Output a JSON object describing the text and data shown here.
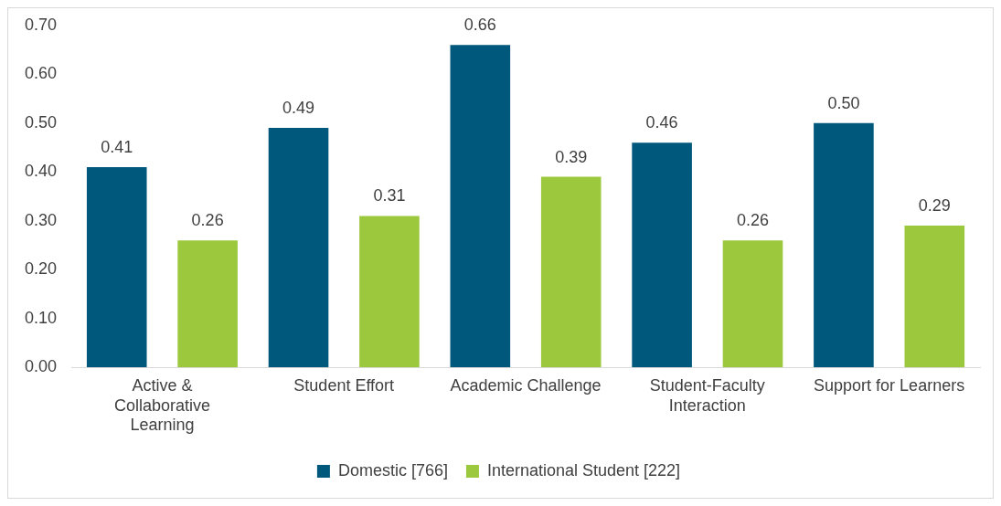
{
  "chart_data": {
    "type": "bar",
    "categories": [
      "Active & Collaborative Learning",
      "Student Effort",
      "Academic Challenge",
      "Student-Faculty Interaction",
      "Support for Learners"
    ],
    "series": [
      {
        "name": "Domestic [766]",
        "color": "#00587c",
        "values": [
          0.41,
          0.49,
          0.66,
          0.46,
          0.5
        ],
        "value_labels": [
          "0.41",
          "0.49",
          "0.66",
          "0.46",
          "0.50"
        ]
      },
      {
        "name": "International Student [222]",
        "color": "#9bc83c",
        "values": [
          0.26,
          0.31,
          0.39,
          0.26,
          0.29
        ],
        "value_labels": [
          "0.26",
          "0.31",
          "0.39",
          "0.26",
          "0.29"
        ]
      }
    ],
    "ylim": [
      0,
      0.7
    ],
    "yticks": [
      {
        "value": 0,
        "label": "0.00"
      },
      {
        "value": 0.1,
        "label": "0.10"
      },
      {
        "value": 0.2,
        "label": "0.20"
      },
      {
        "value": 0.3,
        "label": "0.30"
      },
      {
        "value": 0.4,
        "label": "0.40"
      },
      {
        "value": 0.5,
        "label": "0.50"
      },
      {
        "value": 0.6,
        "label": "0.60"
      },
      {
        "value": 0.7,
        "label": "0.70"
      }
    ],
    "grid": false,
    "legend": "bottom"
  }
}
